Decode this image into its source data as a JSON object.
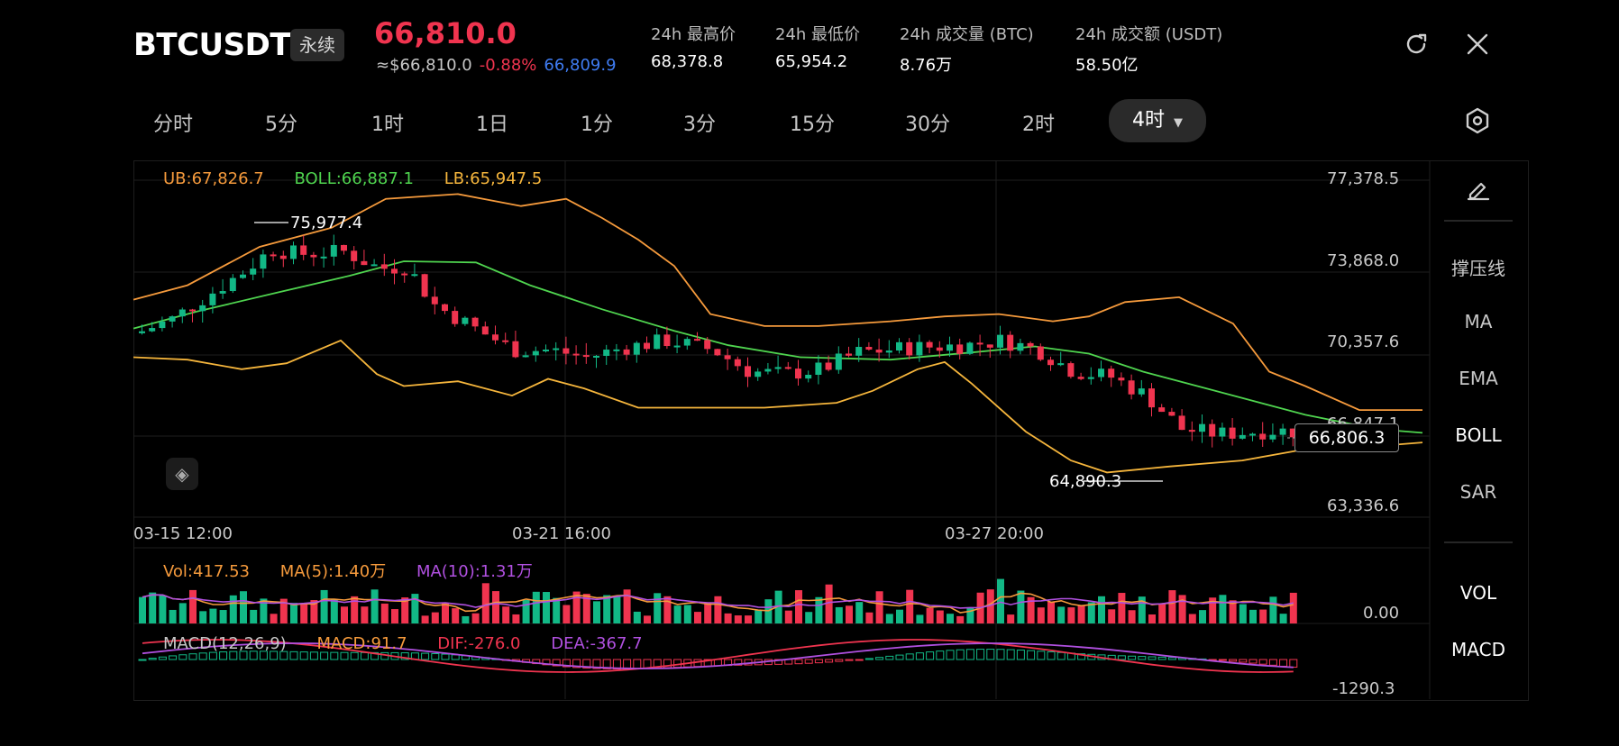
{
  "header": {
    "symbol": "BTCUSDT",
    "contract_type": "永续",
    "last_price": "66,810.0",
    "usd_price": "≈$66,810.0",
    "change_pct": "-0.88%",
    "mark_price": "66,809.9",
    "stats": [
      {
        "label": "24h 最高价",
        "value": "68,378.8"
      },
      {
        "label": "24h 最低价",
        "value": "65,954.2"
      },
      {
        "label": "24h 成交量 (BTC)",
        "value": "8.76万"
      },
      {
        "label": "24h 成交额 (USDT)",
        "value": "58.50亿"
      }
    ]
  },
  "tabs": [
    "分时",
    "5分",
    "1时",
    "1日",
    "1分",
    "3分",
    "15分",
    "30分",
    "2时"
  ],
  "active_tab": "4时",
  "side_menu": [
    "撑压线",
    "MA",
    "EMA",
    "BOLL",
    "SAR",
    "VOL",
    "MACD"
  ],
  "main_chart": {
    "boll_legend": {
      "ub": "UB:67,826.7",
      "boll": "BOLL:66,887.1",
      "lb": "LB:65,947.5"
    },
    "y_ticks": [
      "77,378.5",
      "73,868.0",
      "70,357.6",
      "66,847.1",
      "63,336.6"
    ],
    "x_ticks": [
      "03-15 12:00",
      "03-21 16:00",
      "03-27 20:00"
    ],
    "high_label": "75,977.4",
    "low_label": "64,890.3",
    "last_value": "66,806.3"
  },
  "volume_chart": {
    "vol": "Vol:417.53",
    "ma5": "MA(5):1.40万",
    "ma10": "MA(10):1.31万",
    "y_label": "0.00"
  },
  "macd_chart": {
    "params": "MACD(12,26,9)",
    "macd": "MACD:91.7",
    "dif": "DIF:-276.0",
    "dea": "DEA:-367.7",
    "y_label": "-1290.3"
  },
  "colors": {
    "up": "#12b886",
    "down": "#f0344f",
    "ub": "#f59a3c",
    "boll": "#4fd44f",
    "lb": "#f5b53c",
    "dif": "#f0344f",
    "dea": "#b050e0"
  },
  "icons": {
    "refresh": "refresh-icon",
    "close": "close-icon",
    "settings": "settings-icon",
    "pencil": "pencil-icon"
  }
}
